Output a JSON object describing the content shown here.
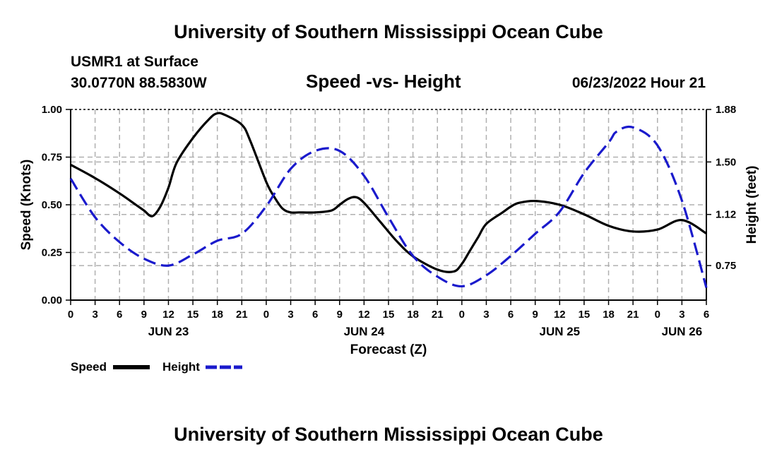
{
  "header": {
    "title": "University of Southern Mississippi Ocean Cube",
    "station": "USMR1 at Surface",
    "location": "30.0770N  88.5830W",
    "chart_title": "Speed -vs- Height",
    "datetime": "06/23/2022 Hour 21"
  },
  "footer": {
    "title": "University of Southern Mississippi Ocean Cube"
  },
  "legend": {
    "speed_label": "Speed",
    "height_label": "Height"
  },
  "colors": {
    "speed": "#000000",
    "height": "#1a1acc",
    "grid": "#b0b0b0"
  },
  "chart_data": {
    "type": "line",
    "title": "Speed -vs- Height",
    "xlabel": "Forecast (Z)",
    "ylabel": "Speed (Knots)",
    "y2label": "Height (feet)",
    "xlim": [
      0,
      78
    ],
    "ylim": [
      0,
      1
    ],
    "y2lim": [
      0.5,
      1.88
    ],
    "x_ticks": [
      0,
      3,
      6,
      9,
      12,
      15,
      18,
      21,
      24,
      27,
      30,
      33,
      36,
      39,
      42,
      45,
      48,
      51,
      54,
      57,
      60,
      63,
      66,
      69,
      72,
      75,
      78
    ],
    "x_tick_labels": [
      "0",
      "3",
      "6",
      "9",
      "12",
      "15",
      "18",
      "21",
      "0",
      "3",
      "6",
      "9",
      "12",
      "15",
      "18",
      "21",
      "0",
      "3",
      "6",
      "9",
      "12",
      "15",
      "18",
      "21",
      "0",
      "3",
      "6"
    ],
    "date_labels": [
      {
        "x": 12,
        "label": "JUN 23"
      },
      {
        "x": 36,
        "label": "JUN 24"
      },
      {
        "x": 60,
        "label": "JUN 25"
      },
      {
        "x": 75,
        "label": "JUN 26"
      }
    ],
    "y_ticks": [
      0,
      0.25,
      0.5,
      0.75,
      1
    ],
    "y_tick_labels": [
      "0.00",
      "0.25",
      "0.50",
      "0.75",
      "1.00"
    ],
    "y2_ticks": [
      0.75,
      1.12,
      1.5,
      1.88
    ],
    "y2_tick_labels": [
      "0.75",
      "1.12",
      "1.50",
      "1.88"
    ],
    "grid": true,
    "series": [
      {
        "name": "Speed",
        "axis": "left",
        "style": "solid",
        "x": [
          0,
          3,
          6,
          8,
          9,
          10,
          11,
          12,
          13,
          15,
          17,
          18,
          19,
          21,
          22,
          24,
          25,
          26,
          27,
          28,
          30,
          32,
          33,
          34,
          35,
          36,
          38,
          40,
          42,
          45,
          47,
          48,
          49,
          50,
          51,
          53,
          54,
          55,
          57,
          60,
          63,
          66,
          69,
          72,
          75,
          78
        ],
        "y": [
          0.71,
          0.64,
          0.56,
          0.5,
          0.47,
          0.44,
          0.49,
          0.59,
          0.72,
          0.85,
          0.95,
          0.98,
          0.97,
          0.92,
          0.84,
          0.62,
          0.54,
          0.48,
          0.46,
          0.46,
          0.46,
          0.47,
          0.5,
          0.53,
          0.54,
          0.51,
          0.41,
          0.31,
          0.23,
          0.16,
          0.15,
          0.19,
          0.26,
          0.33,
          0.4,
          0.46,
          0.49,
          0.51,
          0.52,
          0.5,
          0.45,
          0.39,
          0.36,
          0.37,
          0.42,
          0.35
        ]
      },
      {
        "name": "Height",
        "axis": "right",
        "style": "dashed",
        "x": [
          0,
          3,
          6,
          9,
          12,
          15,
          18,
          21,
          24,
          27,
          30,
          33,
          36,
          39,
          42,
          45,
          48,
          51,
          54,
          57,
          60,
          63,
          66,
          67,
          69,
          72,
          75,
          78
        ],
        "y": [
          1.38,
          1.1,
          0.92,
          0.8,
          0.75,
          0.83,
          0.93,
          0.98,
          1.18,
          1.45,
          1.58,
          1.58,
          1.4,
          1.1,
          0.82,
          0.67,
          0.6,
          0.68,
          0.82,
          0.98,
          1.14,
          1.42,
          1.64,
          1.72,
          1.75,
          1.62,
          1.22,
          0.59
        ]
      }
    ]
  }
}
